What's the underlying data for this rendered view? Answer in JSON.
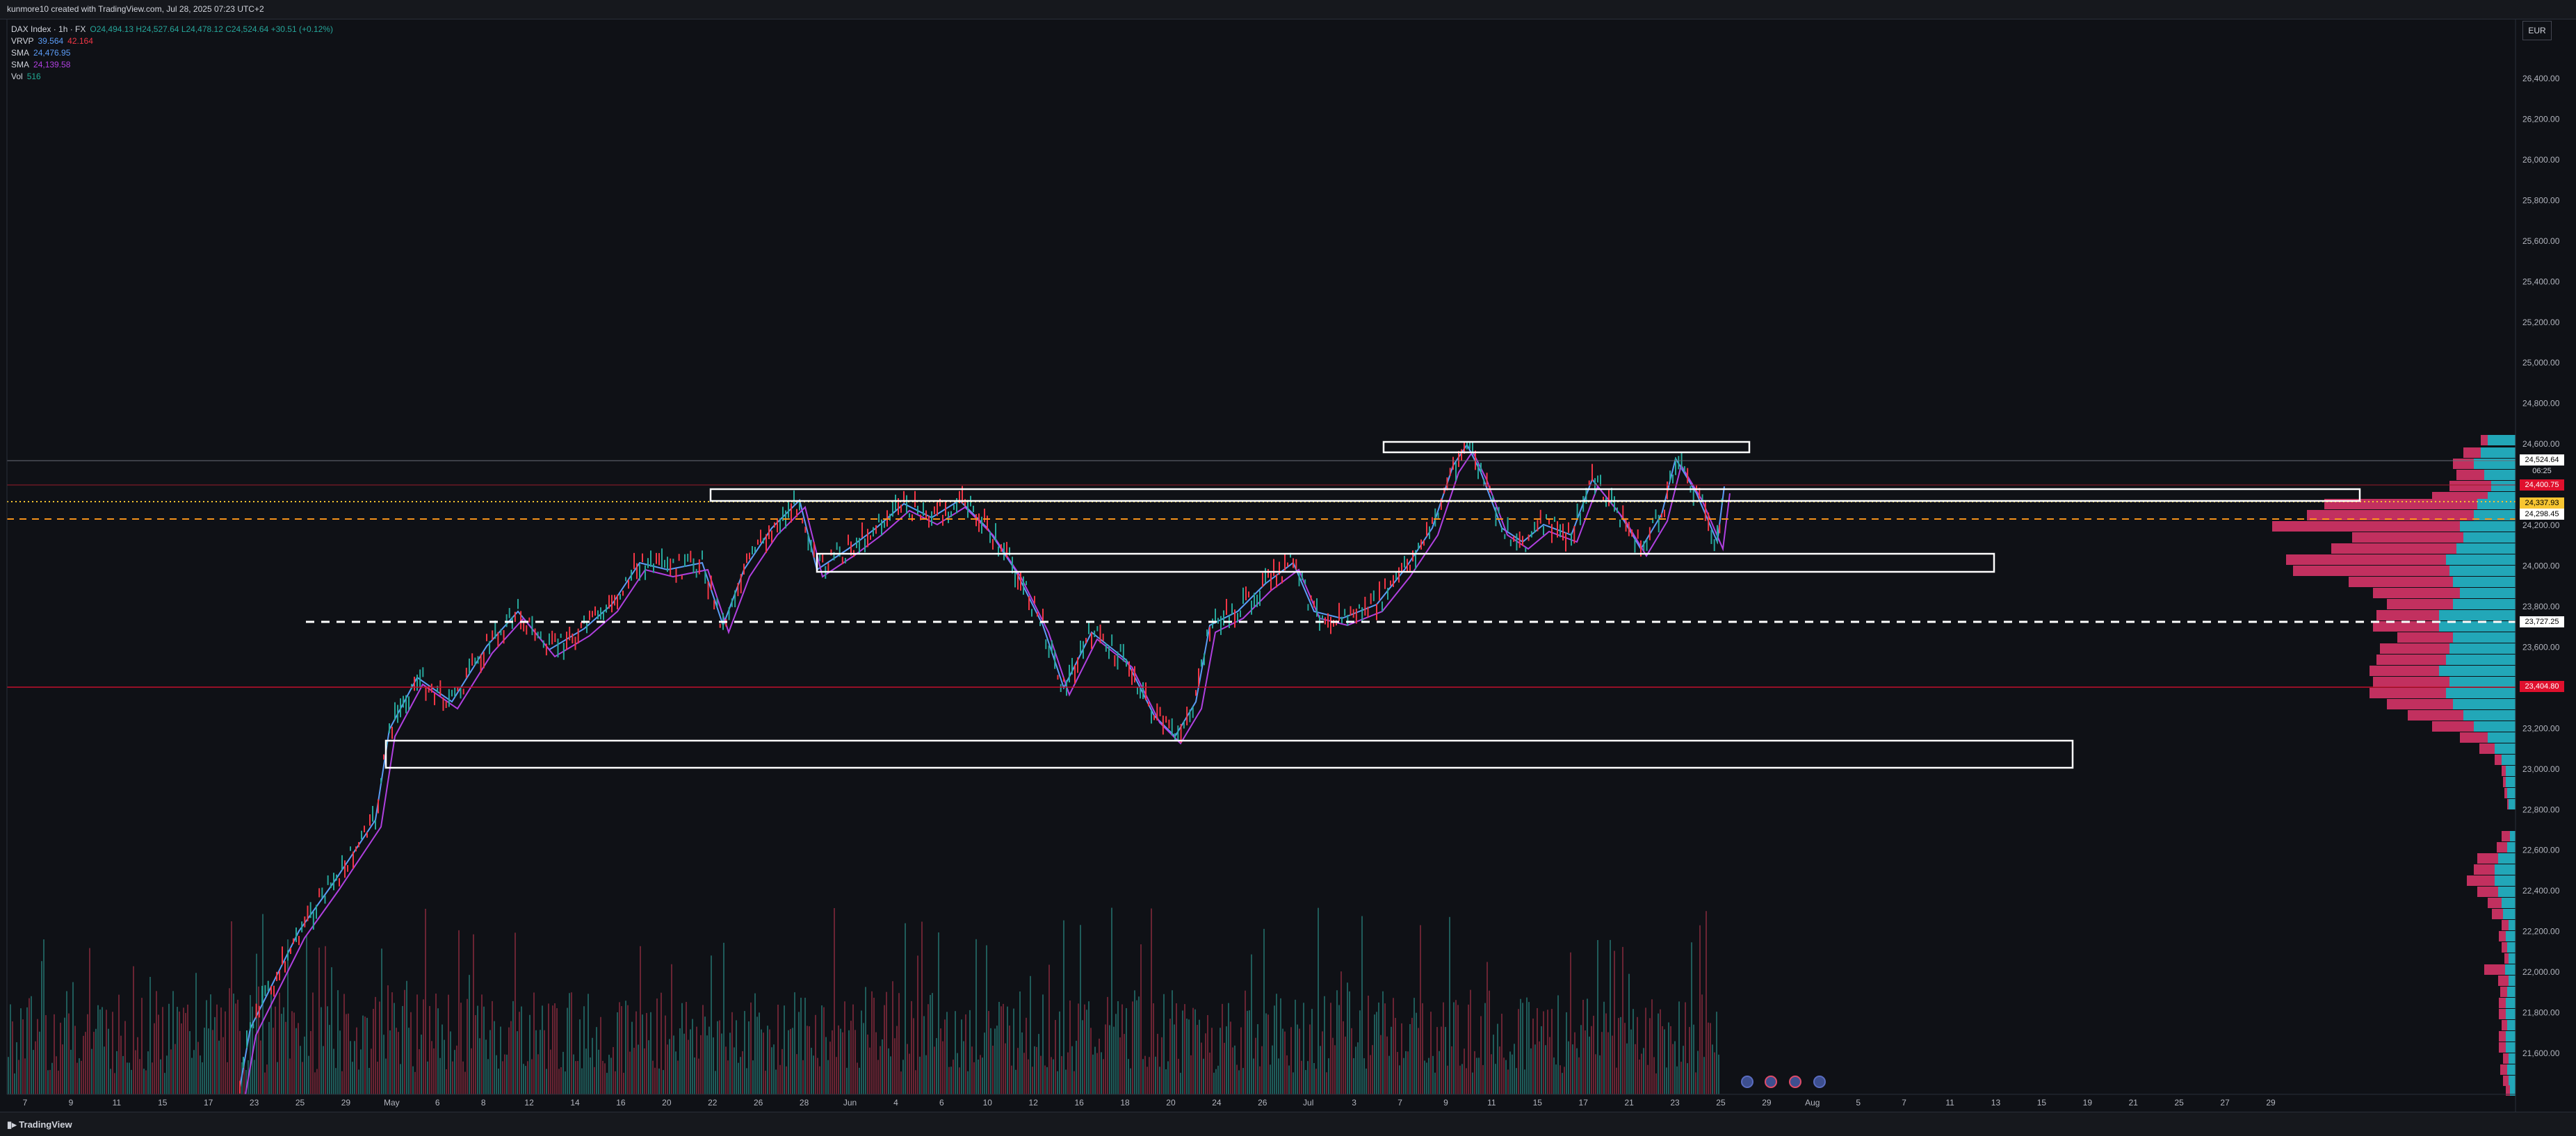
{
  "header": {
    "title": "kunmore10 created with TradingView.com, Jul 28, 2025 07:23 UTC+2"
  },
  "legend": {
    "symbol": "DAX Index · 1h · FX",
    "ohlc": "O24,494.13 H24,527.64 L24,478.12 C24,524.64 +30.51 (+0.12%)",
    "vrvp_label": "VRVP",
    "vrvp_v1": "39.564",
    "vrvp_v2": "42.164",
    "sma1_label": "SMA",
    "sma1_value": "24,476.95",
    "sma2_label": "SMA",
    "sma2_value": "24,139.58",
    "vol_label": "Vol",
    "vol_value": "516"
  },
  "currency": "EUR",
  "price_axis": [
    "26,400.00",
    "26,200.00",
    "26,000.00",
    "25,800.00",
    "25,600.00",
    "25,400.00",
    "25,200.00",
    "25,000.00",
    "24,800.00",
    "24,600.00",
    "24,400.00",
    "24,200.00",
    "24,000.00",
    "23,800.00",
    "23,600.00",
    "23,400.00",
    "23,200.00",
    "23,000.00",
    "22,800.00",
    "22,600.00",
    "22,400.00",
    "22,200.00",
    "22,000.00",
    "21,800.00",
    "21,600.00"
  ],
  "price_labels": {
    "last": "24,524.64",
    "countdown": "06:25",
    "red1": "24,400.75",
    "yellow": "24,337.93",
    "white": "24,298.45",
    "dash": "23,727.25",
    "red2": "23,404.80"
  },
  "time_axis": [
    "7",
    "9",
    "11",
    "15",
    "17",
    "23",
    "25",
    "29",
    "May",
    "6",
    "8",
    "12",
    "14",
    "16",
    "20",
    "22",
    "26",
    "28",
    "Jun",
    "4",
    "6",
    "10",
    "12",
    "16",
    "18",
    "20",
    "24",
    "26",
    "Jul",
    "3",
    "7",
    "9",
    "11",
    "15",
    "17",
    "21",
    "23",
    "25",
    "29",
    "Aug",
    "5",
    "7",
    "11",
    "13",
    "15",
    "19",
    "21",
    "25",
    "27",
    "29"
  ],
  "footer": {
    "brand": "TradingView"
  },
  "colors": {
    "up": "#26a69a",
    "down": "#f23645",
    "volume_profile_up": "#22a7b8",
    "volume_profile_down": "#c2305f"
  }
}
